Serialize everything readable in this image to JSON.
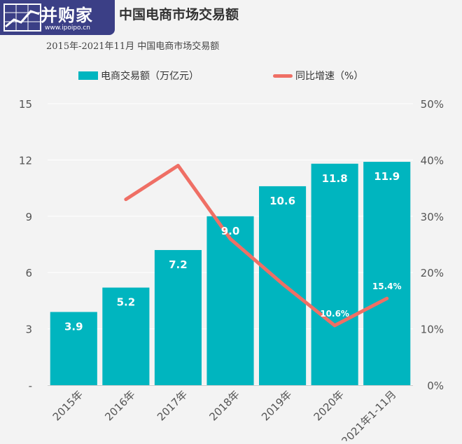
{
  "logo": {
    "text": "并购家",
    "url": "www.ipoipo.cn"
  },
  "colors": {
    "bar": "#00b5bf",
    "line": "#ef6f65",
    "grid": "#ffffff",
    "logo_bg": "#3b3f86"
  },
  "chart_data": {
    "type": "bar",
    "title": "中国电商市场交易额",
    "subtitle": "2015年-2021年11月 中国电商市场交易额",
    "categories": [
      "2015年",
      "2016年",
      "2017年",
      "2018年",
      "2019年",
      "2020年",
      "2021年1-11月"
    ],
    "series": [
      {
        "name": "电商交易额（万亿元）",
        "type": "bar",
        "axis": "left",
        "values": [
          3.9,
          5.2,
          7.2,
          9.0,
          10.6,
          11.8,
          11.9
        ],
        "labels": [
          "3.9",
          "5.2",
          "7.2",
          "9.0",
          "10.6",
          "11.8",
          "11.9"
        ]
      },
      {
        "name": "同比增速（%）",
        "type": "line",
        "axis": "right",
        "values": [
          null,
          33,
          39,
          26,
          18,
          10.6,
          15.4
        ],
        "labels": [
          null,
          null,
          null,
          null,
          null,
          "10.6%",
          "15.4%"
        ]
      }
    ],
    "y_left": {
      "range": [
        0,
        15
      ],
      "ticks": [
        "-",
        "3",
        "6",
        "9",
        "12",
        "15"
      ]
    },
    "y_right": {
      "range": [
        0,
        50
      ],
      "ticks": [
        "0%",
        "10%",
        "20%",
        "30%",
        "40%",
        "50%"
      ]
    },
    "grid": true,
    "legend_position": "top-center"
  }
}
